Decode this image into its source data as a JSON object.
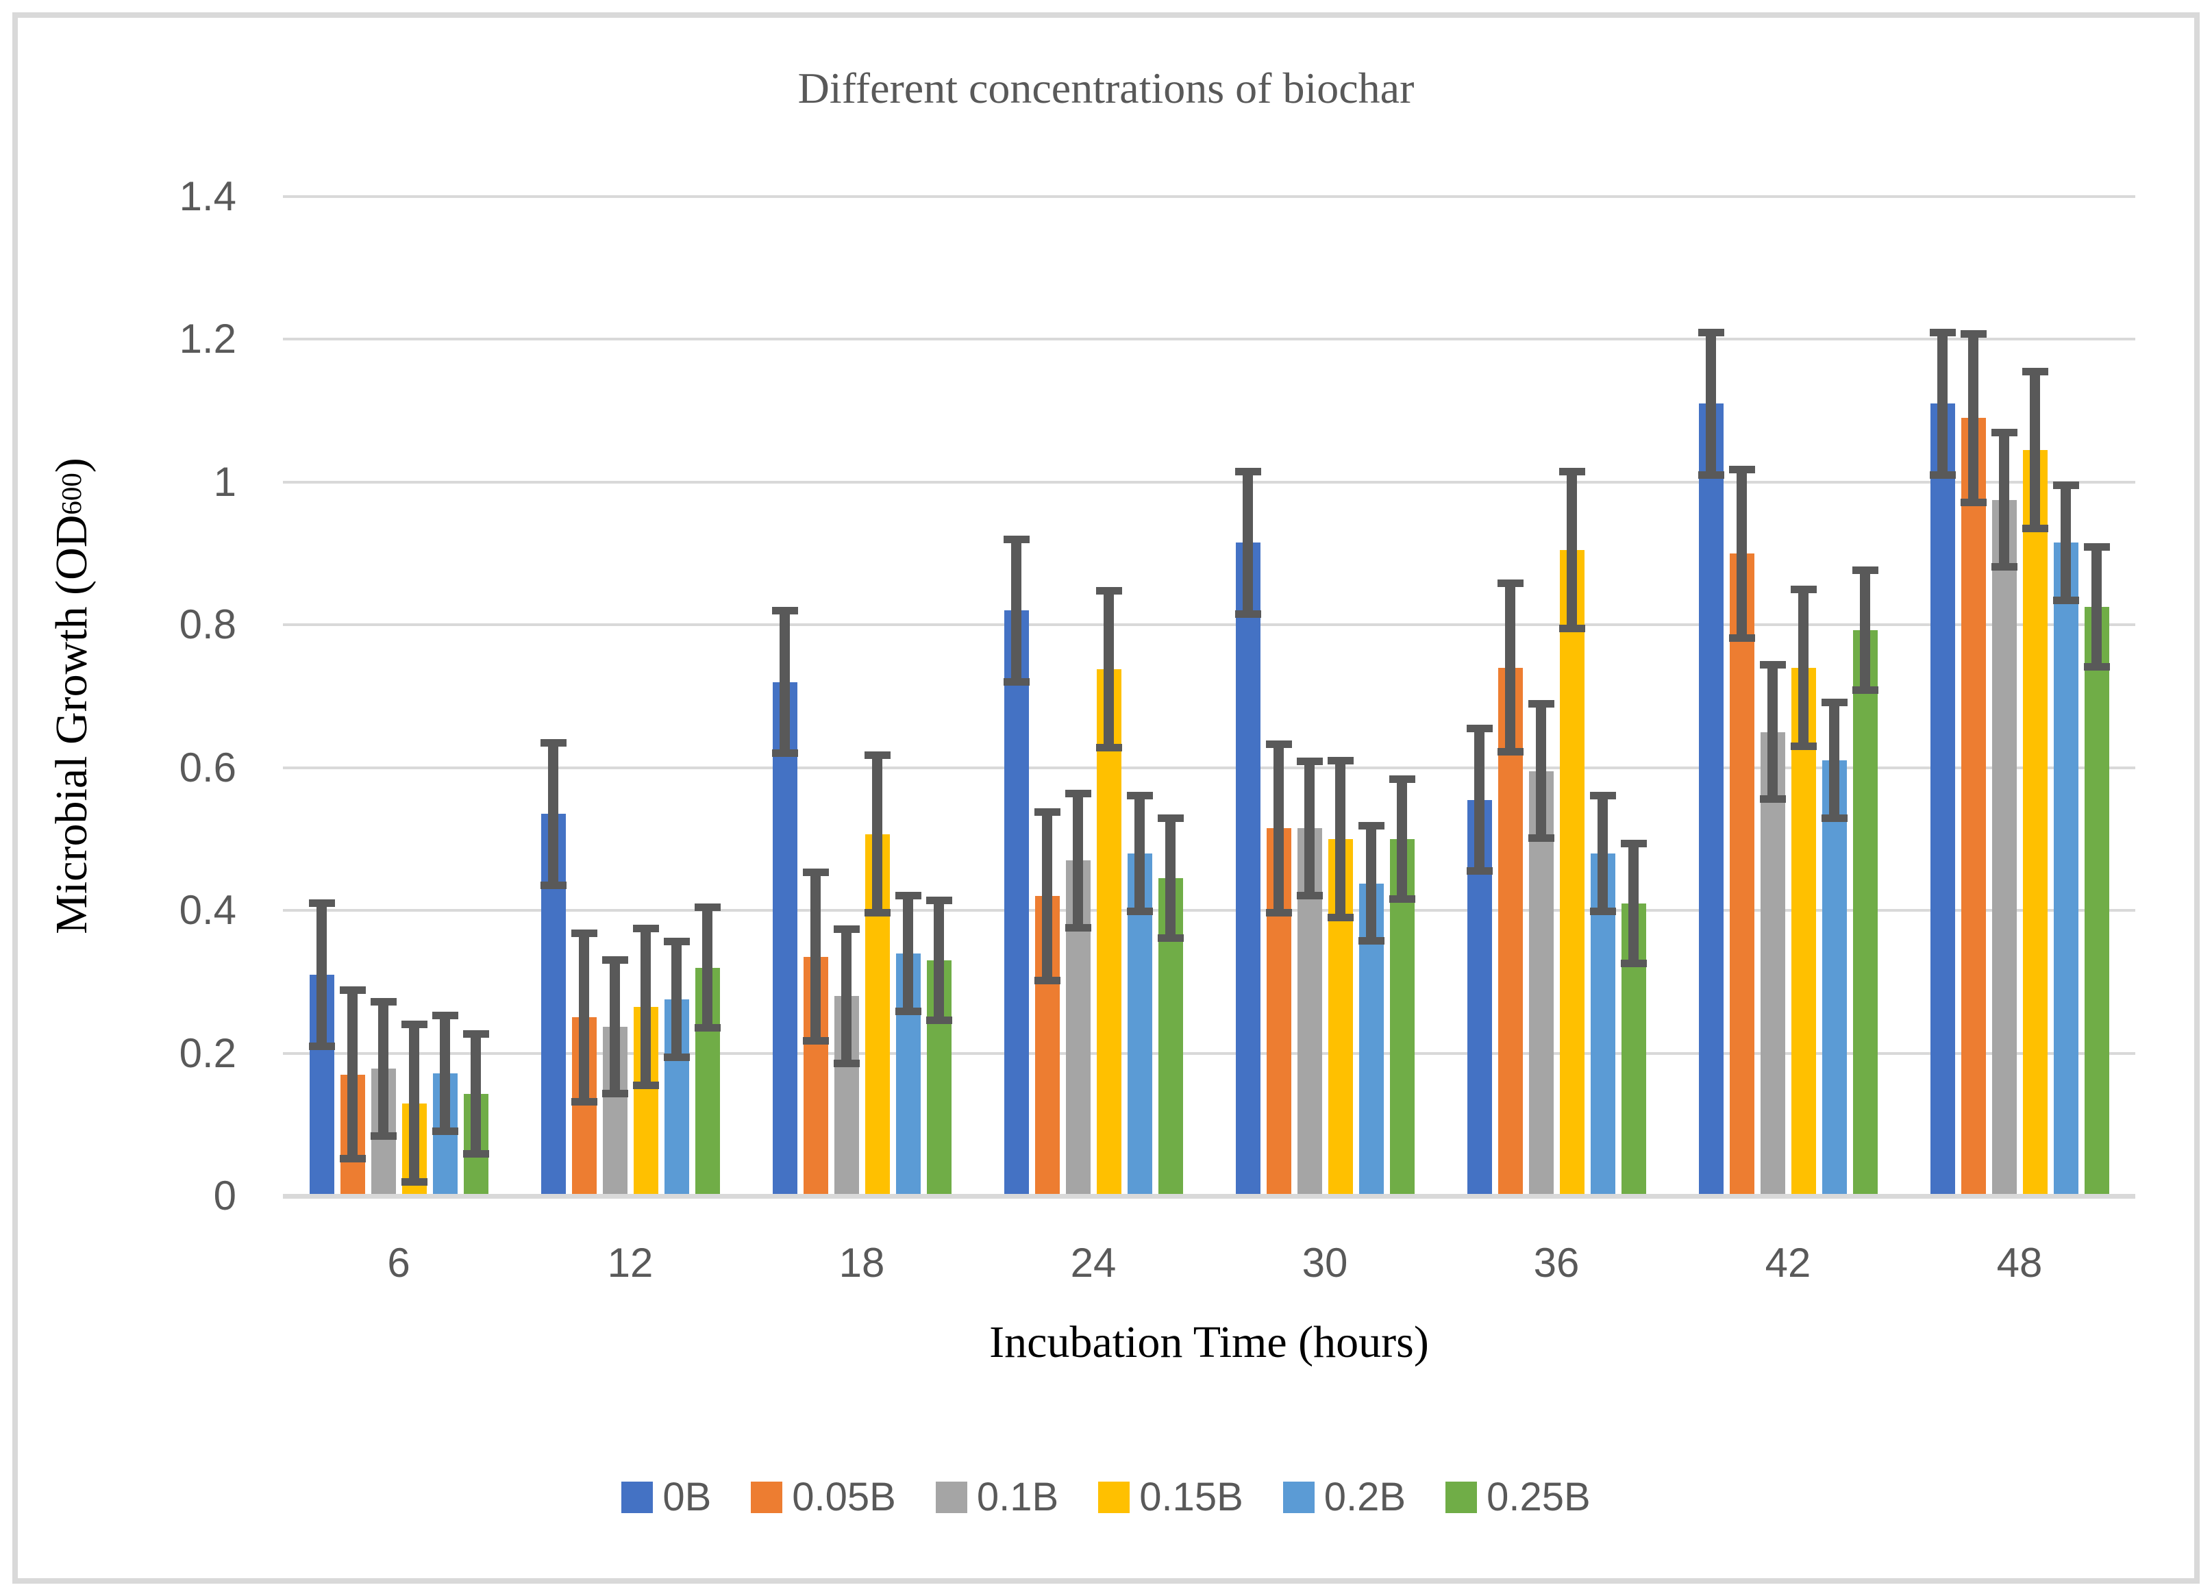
{
  "figure": {
    "border_color": "#D9D9D9",
    "background": "#ffffff"
  },
  "chart_data": {
    "type": "bar",
    "title": "Different concentrations of biochar",
    "xlabel": "Incubation Time (hours)",
    "ylabel": "Microbial Growth (OD600)",
    "ylabel_parts": {
      "main": "Microbial Growth (OD",
      "sub": "600",
      "close": ")"
    },
    "categories": [
      "6",
      "12",
      "18",
      "24",
      "30",
      "36",
      "42",
      "48"
    ],
    "ylim": [
      0,
      1.4
    ],
    "ytick_labels": [
      "0",
      "0.2",
      "0.4",
      "0.6",
      "0.8",
      "1",
      "1.2",
      "1.4"
    ],
    "grid": true,
    "legend_position": "bottom",
    "error_bars": true,
    "series": [
      {
        "name": "0B",
        "color": "#4472C4",
        "error": 0.1,
        "values": [
          0.31,
          0.535,
          0.72,
          0.82,
          0.915,
          0.555,
          1.11,
          1.11
        ]
      },
      {
        "name": "0.05B",
        "color": "#ED7D31",
        "error": 0.118,
        "values": [
          0.17,
          0.25,
          0.335,
          0.42,
          0.515,
          0.74,
          0.9,
          1.09
        ]
      },
      {
        "name": "0.1B",
        "color": "#A5A5A5",
        "error": 0.094,
        "values": [
          0.178,
          0.237,
          0.28,
          0.47,
          0.515,
          0.595,
          0.65,
          0.975
        ]
      },
      {
        "name": "0.15B",
        "color": "#FFC000",
        "error": 0.11,
        "values": [
          0.13,
          0.265,
          0.507,
          0.738,
          0.5,
          0.905,
          0.74,
          1.045
        ]
      },
      {
        "name": "0.2B",
        "color": "#5B9BD5",
        "error": 0.081,
        "values": [
          0.172,
          0.275,
          0.34,
          0.48,
          0.438,
          0.48,
          0.61,
          0.915
        ]
      },
      {
        "name": "0.25B",
        "color": "#70AD47",
        "error": 0.084,
        "values": [
          0.143,
          0.32,
          0.33,
          0.445,
          0.5,
          0.41,
          0.793,
          0.825
        ]
      }
    ],
    "style_colors": {
      "gridline": "#D9D9D9",
      "axis_line": "#D9D9D9",
      "error_bar": "#595959",
      "tick_text": "#595959",
      "title_text": "#595959",
      "axis_title_text": "#000000"
    }
  }
}
